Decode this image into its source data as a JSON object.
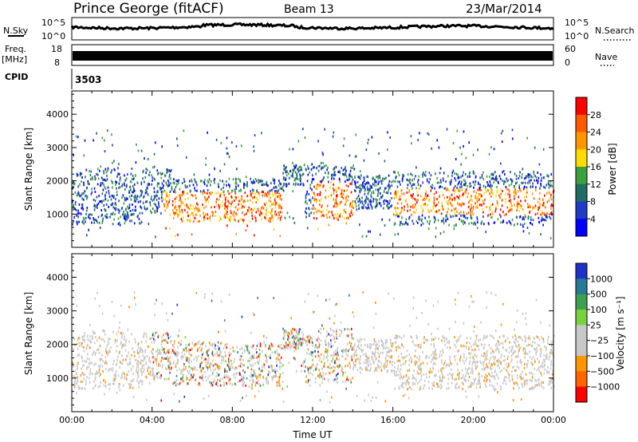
{
  "header": {
    "radar": "Prince George (fitACF)",
    "beam": "Beam 13",
    "date": "23/Mar/2014"
  },
  "aux": {
    "nsky_label": "N.Sky",
    "nsky_ticks": [
      "10^5",
      "10^0"
    ],
    "nsearch_label": "N.Search",
    "nsearch_ticks": [
      "10^5",
      "10^0"
    ],
    "freq_label_top": "Freq.",
    "freq_label_bottom": "[MHz]",
    "freq_ticks": [
      "18",
      "8"
    ],
    "nave_label": "Nave",
    "nave_ticks": [
      "60",
      "0"
    ],
    "cpid_label": "CPID",
    "cpid_value": "3503"
  },
  "chart_data": [
    {
      "type": "heatmap",
      "title": "",
      "xlabel": "Time UT",
      "ylabel": "Slant Range [km]",
      "x_ticks": [
        "00:00",
        "04:00",
        "08:00",
        "12:00",
        "16:00",
        "20:00",
        "00:00"
      ],
      "xlim_hours": [
        0,
        24
      ],
      "y_ticks": [
        1000,
        2000,
        3000,
        4000
      ],
      "ylim": [
        0,
        4700
      ],
      "colorbar": {
        "label": "Power [dB]",
        "ticks": [
          "28",
          "24",
          "20",
          "16",
          "12",
          "8",
          "4"
        ],
        "colors": [
          "#ff0000",
          "#ff5a00",
          "#ff9600",
          "#ffdc00",
          "#3ca03c",
          "#1e6e64",
          "#1e3cc8",
          "#0000ff"
        ]
      }
    },
    {
      "type": "heatmap",
      "title": "",
      "xlabel": "Time UT",
      "ylabel": "Slant Range [km]",
      "x_ticks": [
        "00:00",
        "04:00",
        "08:00",
        "12:00",
        "16:00",
        "20:00",
        "00:00"
      ],
      "xlim_hours": [
        0,
        24
      ],
      "y_ticks": [
        1000,
        2000,
        3000,
        4000
      ],
      "ylim": [
        0,
        4700
      ],
      "colorbar": {
        "label": "Velocity [m s⁻¹]",
        "ticks": [
          "1000",
          "500",
          "100",
          "25",
          "−25",
          "−100",
          "−500",
          "−1000"
        ],
        "colors": [
          "#1e32c8",
          "#287896",
          "#3ca050",
          "#78d23c",
          "#c8c8c8",
          "#c8c8c8",
          "#ff9600",
          "#ff6400",
          "#ff0000"
        ]
      }
    }
  ]
}
